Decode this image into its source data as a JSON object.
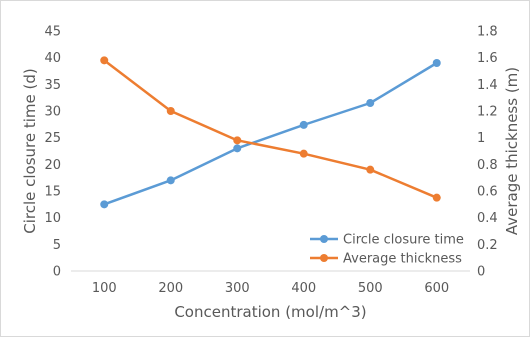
{
  "chart_data": {
    "type": "line",
    "title": "",
    "xlabel": "Concentration (mol/m^3)",
    "ylabel": "Circle closure time (d)",
    "y2label": "Average thickness (m)",
    "categories": [
      "100",
      "200",
      "300",
      "400",
      "500",
      "600"
    ],
    "ylim": [
      0,
      45
    ],
    "y2lim": [
      0,
      1.8
    ],
    "yticks": [
      "0",
      "5",
      "10",
      "15",
      "20",
      "25",
      "30",
      "35",
      "40",
      "45"
    ],
    "y2ticks": [
      "0",
      "0.2",
      "0.4",
      "0.6",
      "0.8",
      "1",
      "1.2",
      "1.4",
      "1.6",
      "1.8"
    ],
    "grid": false,
    "legend_position": "bottom-right",
    "series": [
      {
        "name": "Circle closure time",
        "axis": "left",
        "color": "#5B9BD5",
        "values": [
          12.5,
          17.0,
          23.0,
          27.4,
          31.5,
          39.0
        ]
      },
      {
        "name": "Average thickness",
        "axis": "right",
        "color": "#ED7D31",
        "values": [
          1.58,
          1.2,
          0.98,
          0.88,
          0.76,
          0.55
        ]
      }
    ]
  }
}
